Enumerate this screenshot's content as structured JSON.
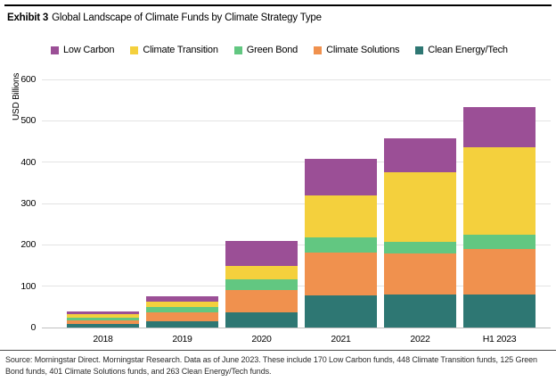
{
  "exhibit": {
    "label": "Exhibit 3",
    "title": "Global Landscape of Climate Funds by Climate Strategy Type"
  },
  "source_note": "Source: Morningstar Direct. Morningstar Research. Data as of June 2023. These include 170 Low Carbon funds, 448 Climate Transition funds, 125 Green Bond funds, 401 Climate Solutions funds, and 263 Clean Energy/Tech funds.",
  "chart_data": {
    "type": "bar",
    "stacked": true,
    "title": "Global Landscape of Climate Funds by Climate Strategy Type",
    "ylabel": "USD Billions",
    "xlabel": "",
    "ylim": [
      0,
      600
    ],
    "yticks": [
      0,
      100,
      200,
      300,
      400,
      500,
      600
    ],
    "grid": "horizontal",
    "legend_position": "top",
    "categories": [
      "2018",
      "2019",
      "2020",
      "2021",
      "2022",
      "H1 2023"
    ],
    "legend_order": [
      "Low Carbon",
      "Climate Transition",
      "Green Bond",
      "Climate Solutions",
      "Clean Energy/Tech"
    ],
    "series": [
      {
        "name": "Clean Energy/Tech",
        "color": "#2e7773",
        "values": [
          8,
          16,
          36,
          77,
          79,
          80
        ]
      },
      {
        "name": "Climate Solutions",
        "color": "#f0914e",
        "values": [
          9,
          21,
          54,
          105,
          101,
          110
        ]
      },
      {
        "name": "Green Bond",
        "color": "#62c781",
        "values": [
          7,
          13,
          26,
          35,
          27,
          34
        ]
      },
      {
        "name": "Climate Transition",
        "color": "#f4d03d",
        "values": [
          9,
          13,
          33,
          102,
          168,
          213
        ]
      },
      {
        "name": "Low Carbon",
        "color": "#9b4f96",
        "values": [
          5,
          12,
          61,
          89,
          82,
          97
        ]
      }
    ],
    "totals": [
      38,
      75,
      210,
      408,
      457,
      534
    ]
  }
}
